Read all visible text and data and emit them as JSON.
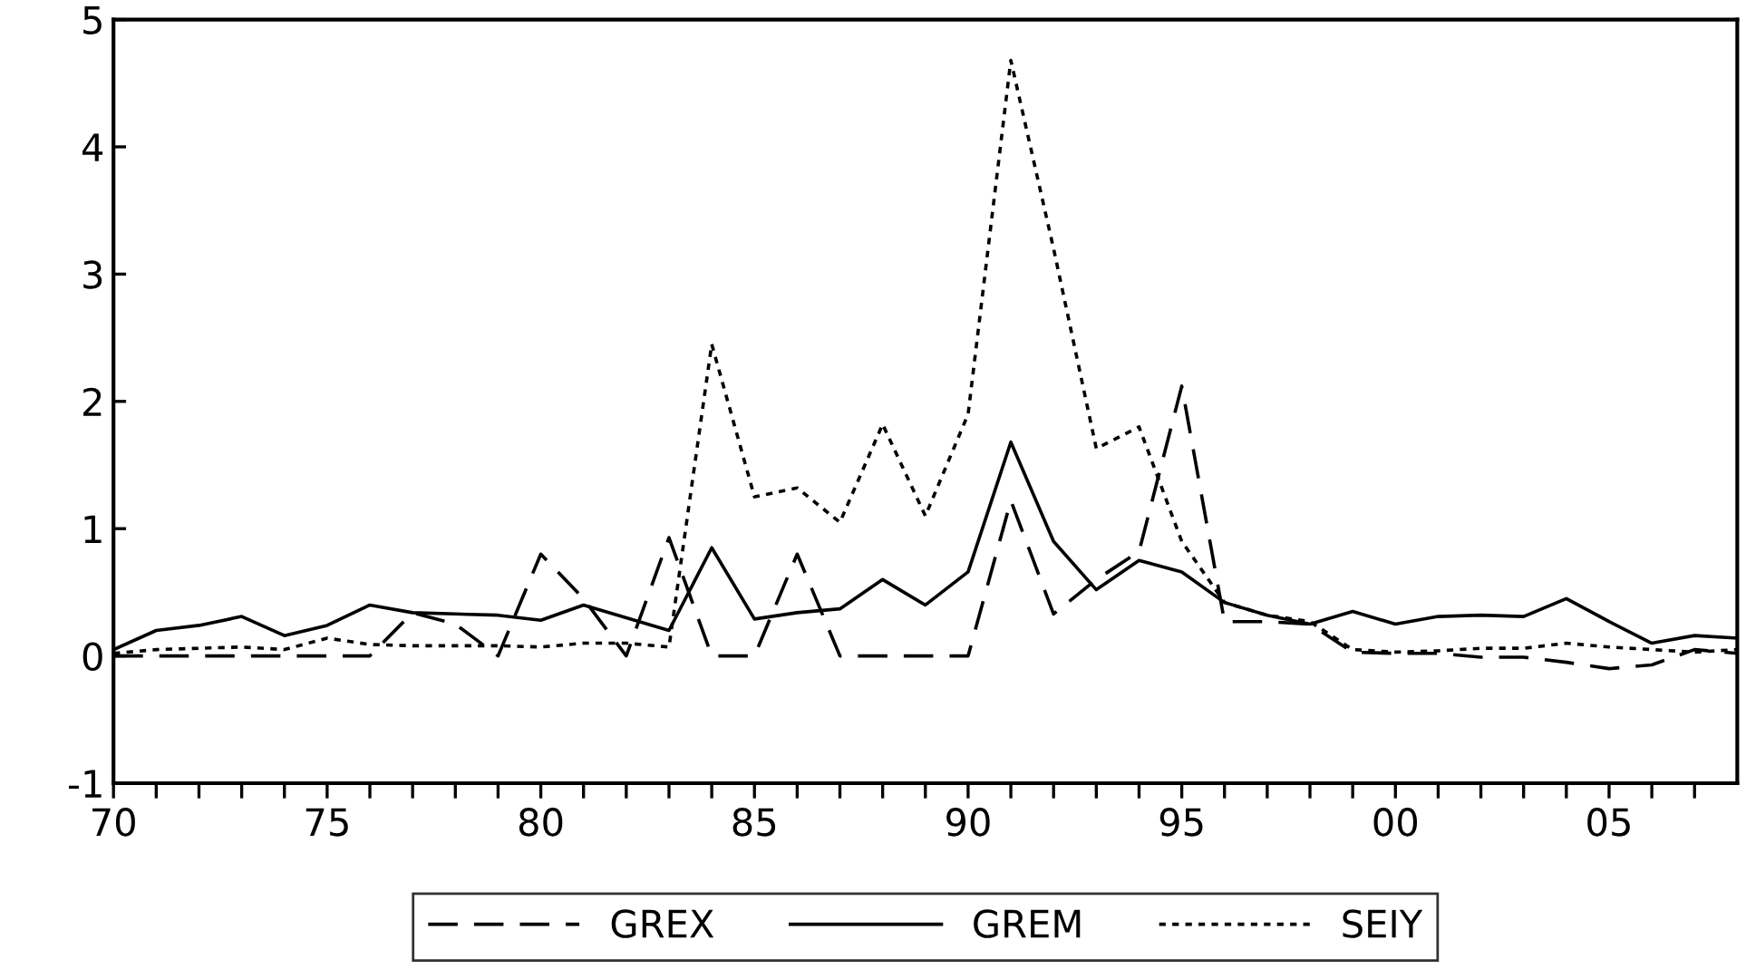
{
  "chart_data": {
    "type": "line",
    "x": [
      1970,
      1971,
      1972,
      1973,
      1974,
      1975,
      1976,
      1977,
      1978,
      1979,
      1980,
      1981,
      1982,
      1983,
      1984,
      1985,
      1986,
      1987,
      1988,
      1989,
      1990,
      1991,
      1992,
      1993,
      1994,
      1995,
      1996,
      1997,
      1998,
      1999,
      2000,
      2001,
      2002,
      2003,
      2004,
      2005,
      2006,
      2007,
      2008
    ],
    "series": [
      {
        "name": "GREX",
        "color": "#000000",
        "line_style": "dashed",
        "values": [
          0,
          0,
          0,
          0,
          0,
          0,
          0,
          0.34,
          0.25,
          0,
          0.8,
          0.45,
          0,
          0.93,
          0,
          0,
          0.8,
          0,
          0,
          0,
          0,
          1.22,
          0.33,
          0.6,
          0.82,
          2.12,
          0.27,
          0.27,
          0.25,
          0.03,
          0.02,
          0.02,
          -0.01,
          -0.01,
          -0.05,
          -0.1,
          -0.07,
          0.05,
          0.02
        ]
      },
      {
        "name": "GREM",
        "color": "#000000",
        "line_style": "solid",
        "values": [
          0.05,
          0.2,
          0.24,
          0.31,
          0.16,
          0.24,
          0.4,
          0.34,
          0.33,
          0.32,
          0.28,
          0.4,
          0.3,
          0.2,
          0.85,
          0.29,
          0.34,
          0.37,
          0.6,
          0.4,
          0.66,
          1.68,
          0.9,
          0.52,
          0.75,
          0.66,
          0.42,
          0.32,
          0.25,
          0.35,
          0.25,
          0.31,
          0.32,
          0.31,
          0.45,
          0.27,
          0.1,
          0.16,
          0.14
        ]
      },
      {
        "name": "SEIY",
        "color": "#000000",
        "line_style": "dotted",
        "values": [
          0.02,
          0.05,
          0.06,
          0.07,
          0.05,
          0.14,
          0.09,
          0.08,
          0.08,
          0.08,
          0.07,
          0.1,
          0.1,
          0.07,
          2.45,
          1.25,
          1.32,
          1.05,
          1.82,
          1.1,
          1.9,
          4.68,
          3.2,
          1.63,
          1.8,
          0.9,
          0.42,
          0.32,
          0.27,
          0.05,
          0.03,
          0.04,
          0.06,
          0.06,
          0.1,
          0.07,
          0.05,
          0.03,
          0.05
        ]
      }
    ],
    "xlim": [
      1970,
      2008
    ],
    "ylim": [
      -1,
      5
    ],
    "yticks": [
      -1,
      0,
      1,
      2,
      3,
      4,
      5
    ],
    "xticks": [
      {
        "value": 1970,
        "label": "70"
      },
      {
        "value": 1971,
        "label": null
      },
      {
        "value": 1972,
        "label": null
      },
      {
        "value": 1973,
        "label": null
      },
      {
        "value": 1974,
        "label": null
      },
      {
        "value": 1975,
        "label": "75"
      },
      {
        "value": 1976,
        "label": null
      },
      {
        "value": 1977,
        "label": null
      },
      {
        "value": 1978,
        "label": null
      },
      {
        "value": 1979,
        "label": null
      },
      {
        "value": 1980,
        "label": "80"
      },
      {
        "value": 1981,
        "label": null
      },
      {
        "value": 1982,
        "label": null
      },
      {
        "value": 1983,
        "label": null
      },
      {
        "value": 1984,
        "label": null
      },
      {
        "value": 1985,
        "label": "85"
      },
      {
        "value": 1986,
        "label": null
      },
      {
        "value": 1987,
        "label": null
      },
      {
        "value": 1988,
        "label": null
      },
      {
        "value": 1989,
        "label": null
      },
      {
        "value": 1990,
        "label": "90"
      },
      {
        "value": 1991,
        "label": null
      },
      {
        "value": 1992,
        "label": null
      },
      {
        "value": 1993,
        "label": null
      },
      {
        "value": 1994,
        "label": null
      },
      {
        "value": 1995,
        "label": "95"
      },
      {
        "value": 1996,
        "label": null
      },
      {
        "value": 1997,
        "label": null
      },
      {
        "value": 1998,
        "label": null
      },
      {
        "value": 1999,
        "label": null
      },
      {
        "value": 2000,
        "label": "00"
      },
      {
        "value": 2001,
        "label": null
      },
      {
        "value": 2002,
        "label": null
      },
      {
        "value": 2003,
        "label": null
      },
      {
        "value": 2004,
        "label": null
      },
      {
        "value": 2005,
        "label": "05"
      },
      {
        "value": 2006,
        "label": null
      },
      {
        "value": 2007,
        "label": null
      }
    ],
    "grid": false,
    "legend": "bottom"
  }
}
